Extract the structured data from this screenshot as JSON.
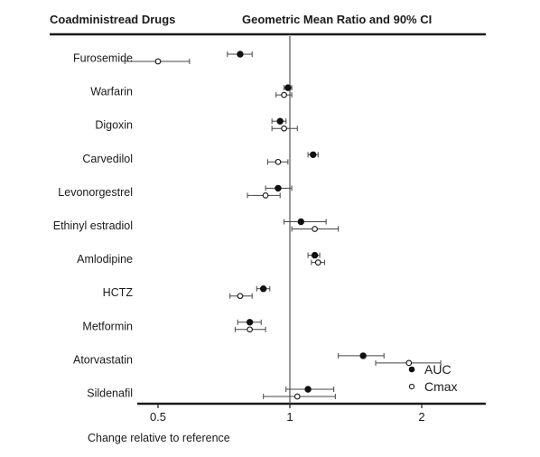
{
  "header": {
    "left": "Coadministread Drugs",
    "right": "Geometric Mean Ratio and 90% CI"
  },
  "chart_data": {
    "type": "forest",
    "xlabel": "Change relative to reference",
    "xscale": "log",
    "xlim": [
      0.4,
      2.5
    ],
    "xticks": [
      0.5,
      1,
      2
    ],
    "xtick_labels": [
      "0.5",
      "1",
      "2"
    ],
    "reference_line": 1,
    "legend": {
      "placement": "bottom-right",
      "entries": [
        "AUC",
        "Cmax"
      ]
    },
    "categories": [
      "Furosemide",
      "Warfarin",
      "Digoxin",
      "Carvedilol",
      "Levonorgestrel",
      "Ethinyl estradiol",
      "Amlodipine",
      "HCTZ",
      "Metformin",
      "Atorvastatin",
      "Sildenafil"
    ],
    "series": [
      {
        "name": "AUC",
        "marker": "filled",
        "points": [
          {
            "drug": "Furosemide",
            "ratio": 0.77,
            "lo": 0.72,
            "hi": 0.82
          },
          {
            "drug": "Warfarin",
            "ratio": 0.99,
            "lo": 0.97,
            "hi": 1.01
          },
          {
            "drug": "Digoxin",
            "ratio": 0.95,
            "lo": 0.91,
            "hi": 0.98
          },
          {
            "drug": "Carvedilol",
            "ratio": 1.13,
            "lo": 1.1,
            "hi": 1.16
          },
          {
            "drug": "Levonorgestrel",
            "ratio": 0.94,
            "lo": 0.88,
            "hi": 1.01
          },
          {
            "drug": "Ethinyl estradiol",
            "ratio": 1.06,
            "lo": 0.97,
            "hi": 1.21
          },
          {
            "drug": "Amlodipine",
            "ratio": 1.14,
            "lo": 1.1,
            "hi": 1.17
          },
          {
            "drug": "HCTZ",
            "ratio": 0.87,
            "lo": 0.84,
            "hi": 0.9
          },
          {
            "drug": "Metformin",
            "ratio": 0.81,
            "lo": 0.76,
            "hi": 0.86
          },
          {
            "drug": "Atorvastatin",
            "ratio": 1.47,
            "lo": 1.29,
            "hi": 1.64
          },
          {
            "drug": "Sildenafil",
            "ratio": 1.1,
            "lo": 0.98,
            "hi": 1.26
          }
        ]
      },
      {
        "name": "Cmax",
        "marker": "open",
        "points": [
          {
            "drug": "Furosemide",
            "ratio": 0.5,
            "lo": 0.42,
            "hi": 0.59
          },
          {
            "drug": "Warfarin",
            "ratio": 0.97,
            "lo": 0.93,
            "hi": 1.01
          },
          {
            "drug": "Digoxin",
            "ratio": 0.97,
            "lo": 0.91,
            "hi": 1.04
          },
          {
            "drug": "Carvedilol",
            "ratio": 0.94,
            "lo": 0.89,
            "hi": 0.99
          },
          {
            "drug": "Levonorgestrel",
            "ratio": 0.88,
            "lo": 0.8,
            "hi": 0.95
          },
          {
            "drug": "Ethinyl estradiol",
            "ratio": 1.14,
            "lo": 1.01,
            "hi": 1.29
          },
          {
            "drug": "Amlodipine",
            "ratio": 1.16,
            "lo": 1.12,
            "hi": 1.2
          },
          {
            "drug": "HCTZ",
            "ratio": 0.77,
            "lo": 0.73,
            "hi": 0.82
          },
          {
            "drug": "Metformin",
            "ratio": 0.81,
            "lo": 0.75,
            "hi": 0.88
          },
          {
            "drug": "Atorvastatin",
            "ratio": 1.87,
            "lo": 1.57,
            "hi": 2.21
          },
          {
            "drug": "Sildenafil",
            "ratio": 1.04,
            "lo": 0.87,
            "hi": 1.27
          }
        ]
      }
    ]
  }
}
